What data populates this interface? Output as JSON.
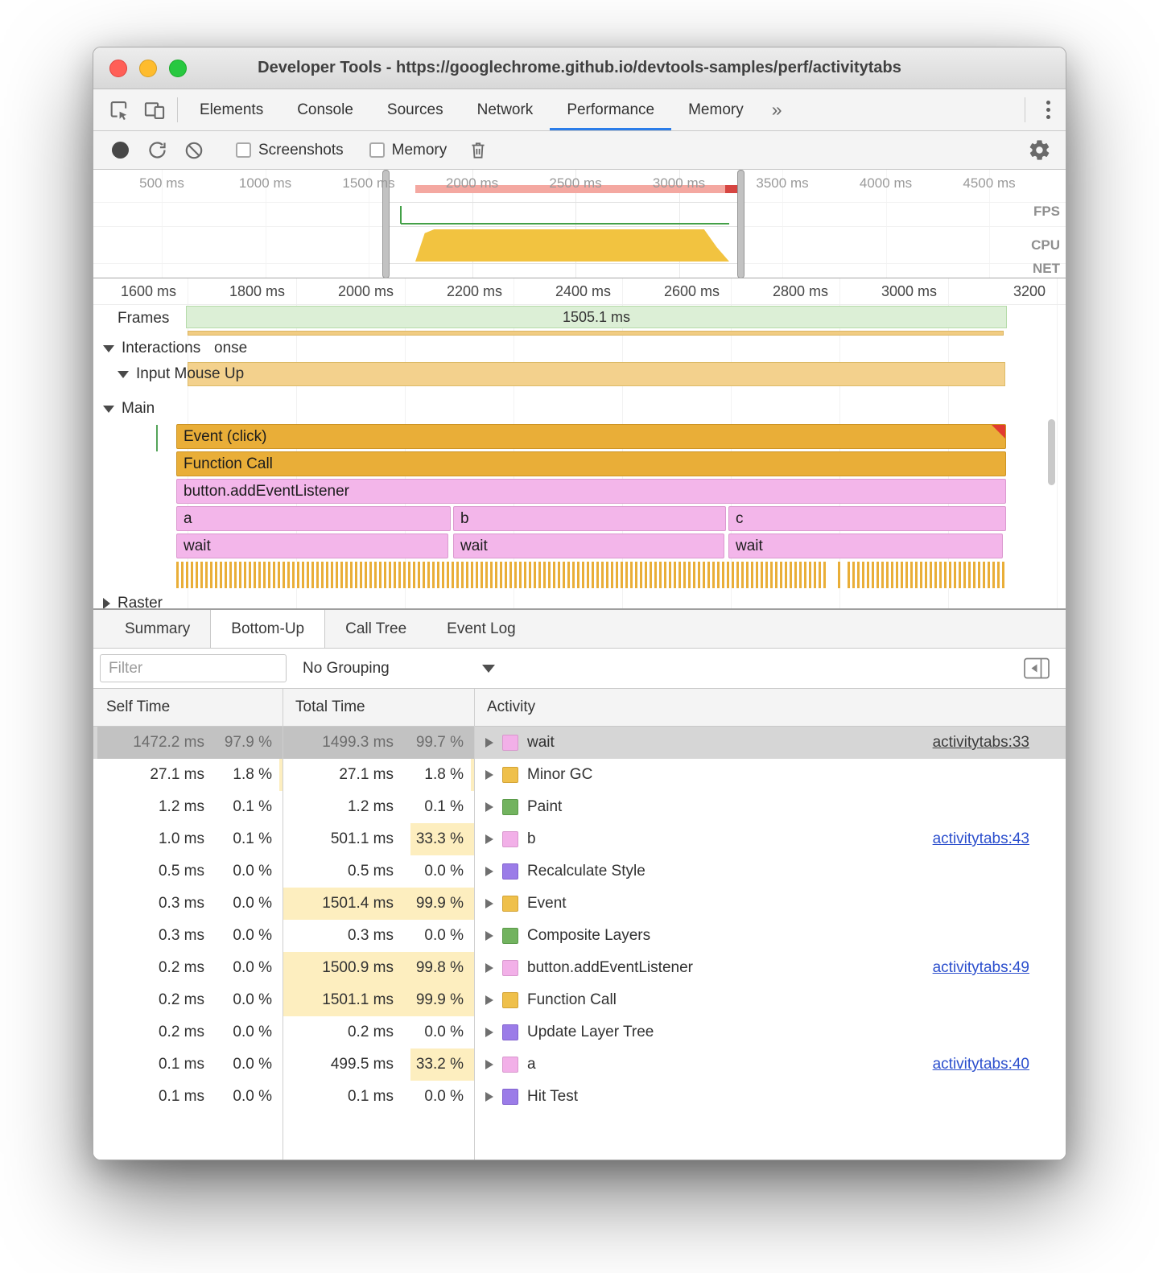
{
  "window": {
    "title": "Developer Tools - https://googlechrome.github.io/devtools-samples/perf/activitytabs"
  },
  "tabs": {
    "items": [
      "Elements",
      "Console",
      "Sources",
      "Network",
      "Performance",
      "Memory"
    ],
    "more": "»",
    "active": "Performance"
  },
  "toolbar": {
    "screenshots": "Screenshots",
    "memory": "Memory"
  },
  "overview": {
    "ticks": [
      "500 ms",
      "1000 ms",
      "1500 ms",
      "2000 ms",
      "2500 ms",
      "3000 ms",
      "3500 ms",
      "4000 ms",
      "4500 ms"
    ],
    "lanes": [
      "FPS",
      "CPU",
      "NET"
    ]
  },
  "flame": {
    "ticks": [
      "1600 ms",
      "1800 ms",
      "2000 ms",
      "2200 ms",
      "2400 ms",
      "2600 ms",
      "2800 ms",
      "3000 ms",
      "3200"
    ],
    "frames_label": "Frames",
    "frames_value": "1505.1 ms",
    "interactions_label": "Interactions",
    "interactions_clipped": "onse",
    "input_mouse_up_label": "Input Mouse Up",
    "main_label": "Main",
    "raster_label": "Raster",
    "event_label": "Event (click)",
    "function_label": "Function Call",
    "listener_label": "button.addEventListener",
    "seg_a": "a",
    "seg_b": "b",
    "seg_c": "c",
    "wait_label": "wait"
  },
  "bottom_tabs": {
    "items": [
      "Summary",
      "Bottom-Up",
      "Call Tree",
      "Event Log"
    ],
    "active": "Bottom-Up"
  },
  "filter": {
    "placeholder": "Filter",
    "grouping": "No Grouping"
  },
  "table": {
    "headers": [
      "Self Time",
      "Total Time",
      "Activity"
    ],
    "rows": [
      {
        "self": "1472.2 ms",
        "self_pct": "97.9 %",
        "total": "1499.3 ms",
        "total_pct": "99.7 %",
        "label": "wait",
        "link": "activitytabs:33",
        "color": "pink",
        "selected": true
      },
      {
        "self": "27.1 ms",
        "self_pct": "1.8 %",
        "total": "27.1 ms",
        "total_pct": "1.8 %",
        "label": "Minor GC",
        "color": "yellow"
      },
      {
        "self": "1.2 ms",
        "self_pct": "0.1 %",
        "total": "1.2 ms",
        "total_pct": "0.1 %",
        "label": "Paint",
        "color": "green"
      },
      {
        "self": "1.0 ms",
        "self_pct": "0.1 %",
        "total": "501.1 ms",
        "total_pct": "33.3 %",
        "label": "b",
        "link": "activitytabs:43",
        "color": "pink"
      },
      {
        "self": "0.5 ms",
        "self_pct": "0.0 %",
        "total": "0.5 ms",
        "total_pct": "0.0 %",
        "label": "Recalculate Style",
        "color": "purple"
      },
      {
        "self": "0.3 ms",
        "self_pct": "0.0 %",
        "total": "1501.4 ms",
        "total_pct": "99.9 %",
        "label": "Event",
        "color": "yellow"
      },
      {
        "self": "0.3 ms",
        "self_pct": "0.0 %",
        "total": "0.3 ms",
        "total_pct": "0.0 %",
        "label": "Composite Layers",
        "color": "green"
      },
      {
        "self": "0.2 ms",
        "self_pct": "0.0 %",
        "total": "1500.9 ms",
        "total_pct": "99.8 %",
        "label": "button.addEventListener",
        "link": "activitytabs:49",
        "color": "pink"
      },
      {
        "self": "0.2 ms",
        "self_pct": "0.0 %",
        "total": "1501.1 ms",
        "total_pct": "99.9 %",
        "label": "Function Call",
        "color": "yellow"
      },
      {
        "self": "0.2 ms",
        "self_pct": "0.0 %",
        "total": "0.2 ms",
        "total_pct": "0.0 %",
        "label": "Update Layer Tree",
        "color": "purple"
      },
      {
        "self": "0.1 ms",
        "self_pct": "0.0 %",
        "total": "499.5 ms",
        "total_pct": "33.2 %",
        "label": "a",
        "link": "activitytabs:40",
        "color": "pink"
      },
      {
        "self": "0.1 ms",
        "self_pct": "0.0 %",
        "total": "0.1 ms",
        "total_pct": "0.0 %",
        "label": "Hit Test",
        "color": "purple"
      }
    ]
  },
  "colors": {
    "pink": {
      "bg": "#f2b0e8",
      "border": "#d897cd"
    },
    "yellow": {
      "bg": "#efc04b",
      "border": "#d3a336"
    },
    "green": {
      "bg": "#72b35f",
      "border": "#5a9a49"
    },
    "purple": {
      "bg": "#9b7ce8",
      "border": "#8263cf"
    },
    "accent": {
      "tab_underline": "#2b7de9",
      "link": "#2c4fcd",
      "selected_row": "#d6d6d6",
      "total_highlight": "#fdeebf"
    }
  }
}
